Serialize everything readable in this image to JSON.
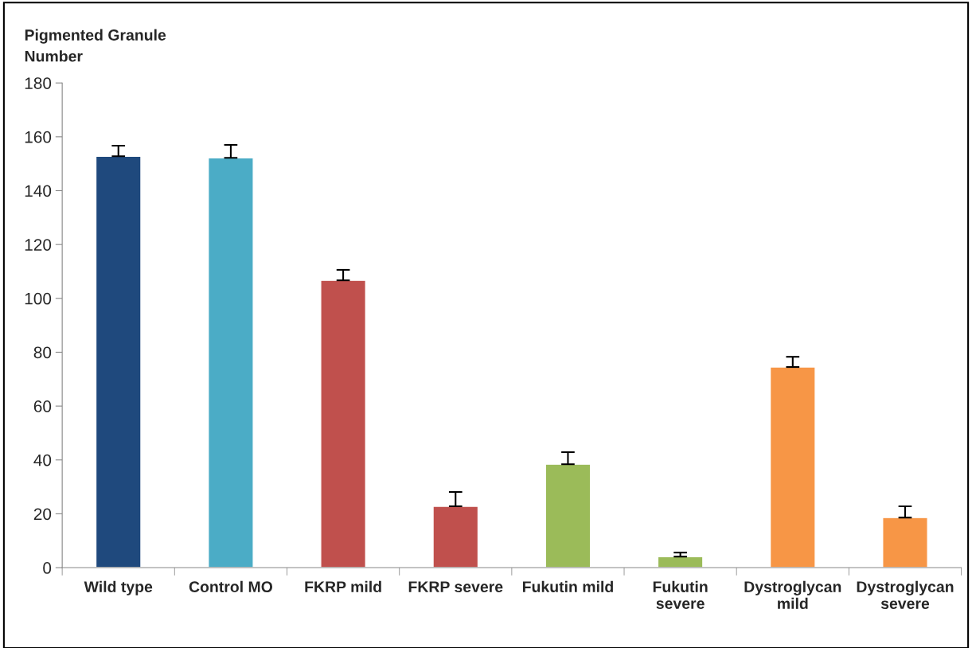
{
  "chart_data": {
    "type": "bar",
    "ylabel": "Pigmented Granule\nNumber",
    "categories": [
      "Wild type",
      "Control MO",
      "FKRP mild",
      "FKRP severe",
      "Fukutin mild",
      "Fukutin\nsevere",
      "Dystroglycan\nmild",
      "Dystroglycan\nsevere"
    ],
    "values": [
      152.8,
      152.2,
      106.7,
      22.8,
      38.4,
      4.1,
      74.5,
      18.6
    ],
    "errors": [
      [
        152.8,
        156.7
      ],
      [
        152.2,
        157.0
      ],
      [
        106.7,
        110.6
      ],
      [
        22.8,
        28.1
      ],
      [
        38.4,
        42.9
      ],
      [
        4.1,
        5.6
      ],
      [
        74.5,
        78.3
      ],
      [
        18.6,
        22.8
      ]
    ],
    "colors": [
      "#1f497d",
      "#4bacc6",
      "#c0504d",
      "#c0504d",
      "#9bbb59",
      "#9bbb59",
      "#f79646",
      "#f79646"
    ],
    "ylim": [
      0,
      180
    ],
    "yticks": [
      0,
      20,
      40,
      60,
      80,
      100,
      120,
      140,
      160,
      180
    ],
    "grid": false
  }
}
